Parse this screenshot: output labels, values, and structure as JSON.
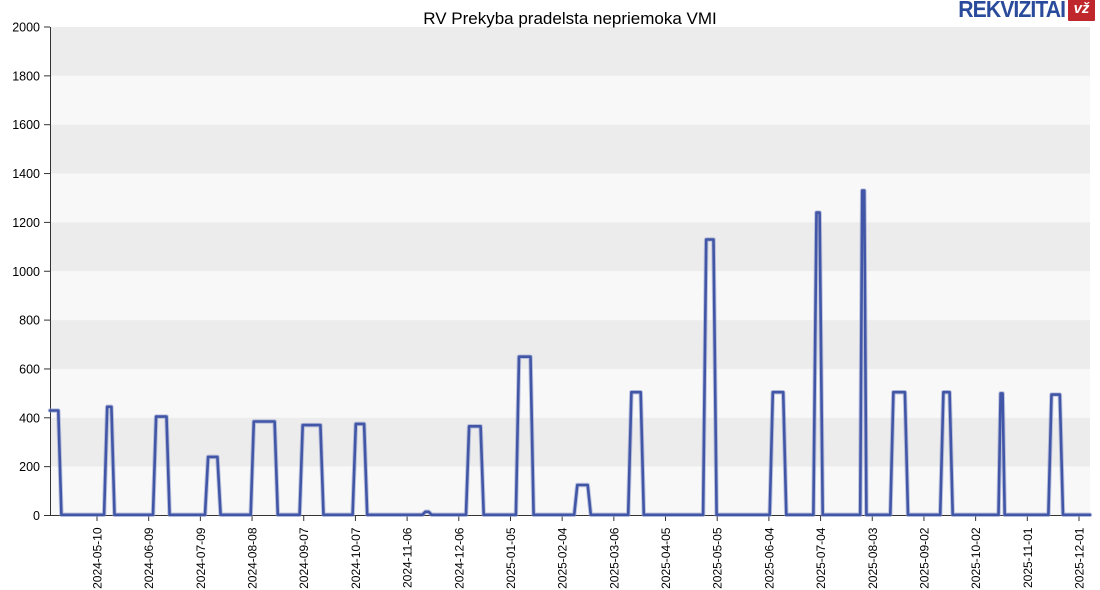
{
  "logo": {
    "text": "REKVIZITAI",
    "badge": "vž",
    "brand_blue": "#2a4b9b",
    "badge_red": "#c0272d"
  },
  "chart_data": {
    "type": "line",
    "title": "RV Prekyba pradelsta nepriemoka VMI",
    "xlabel": "",
    "ylabel": "",
    "ylim": [
      0,
      2000
    ],
    "ytick_step": 200,
    "grid": "horizontal-bands",
    "legend": "none",
    "series_color": "#4156a6",
    "grid_band_colors": [
      "#ececec",
      "#f8f8f8"
    ],
    "axis_color": "#333333",
    "x_tick_labels": [
      "2024-05-10",
      "2024-06-09",
      "2024-07-09",
      "2024-08-08",
      "2024-09-07",
      "2024-10-07",
      "2024-11-06",
      "2024-12-06",
      "2025-01-05",
      "2025-02-04",
      "2025-03-06",
      "2025-04-05",
      "2025-05-05",
      "2025-06-04",
      "2025-07-04",
      "2025-08-03",
      "2025-09-02",
      "2025-10-02",
      "2025-11-01",
      "2025-12-01"
    ],
    "baseline_value": 3,
    "spikes": [
      {
        "near": "series-start",
        "value": 430
      },
      {
        "near": "2024-05-10",
        "value": 445
      },
      {
        "near": "2024-06-09",
        "value": 405
      },
      {
        "near": "2024-07-09",
        "value": 240
      },
      {
        "near": "2024-08-08",
        "value": 385
      },
      {
        "near": "2024-09-07",
        "value": 370
      },
      {
        "near": "2024-10-07",
        "value": 375
      },
      {
        "near": "2024-11-06",
        "value": 15
      },
      {
        "near": "2024-12-06",
        "value": 365
      },
      {
        "near": "2025-01-05",
        "value": 650
      },
      {
        "near": "2025-02-04",
        "value": 125
      },
      {
        "near": "2025-03-06",
        "value": 505
      },
      {
        "near": "2025-05-05",
        "value": 1130
      },
      {
        "near": "2025-06-04",
        "value": 505
      },
      {
        "near": "2025-07-04",
        "value": 1240
      },
      {
        "near": "2025-08-03",
        "value": 1330
      },
      {
        "near": "2025-09-02",
        "value": 505
      },
      {
        "near": "2025-10-02",
        "value": 505
      },
      {
        "near": "2025-11-01",
        "value": 500
      },
      {
        "near": "2025-12-01",
        "value": 495
      }
    ],
    "points": [
      [
        0.0,
        430
      ],
      [
        0.008,
        430
      ],
      [
        0.011,
        3
      ],
      [
        0.052,
        3
      ],
      [
        0.055,
        445
      ],
      [
        0.059,
        445
      ],
      [
        0.062,
        3
      ],
      [
        0.099,
        3
      ],
      [
        0.102,
        405
      ],
      [
        0.112,
        405
      ],
      [
        0.115,
        3
      ],
      [
        0.149,
        3
      ],
      [
        0.152,
        240
      ],
      [
        0.161,
        240
      ],
      [
        0.164,
        3
      ],
      [
        0.193,
        3
      ],
      [
        0.196,
        385
      ],
      [
        0.216,
        385
      ],
      [
        0.219,
        3
      ],
      [
        0.24,
        3
      ],
      [
        0.243,
        370
      ],
      [
        0.26,
        370
      ],
      [
        0.263,
        3
      ],
      [
        0.291,
        3
      ],
      [
        0.294,
        375
      ],
      [
        0.302,
        375
      ],
      [
        0.305,
        3
      ],
      [
        0.358,
        3
      ],
      [
        0.361,
        15
      ],
      [
        0.364,
        15
      ],
      [
        0.367,
        3
      ],
      [
        0.4,
        3
      ],
      [
        0.403,
        365
      ],
      [
        0.414,
        365
      ],
      [
        0.417,
        3
      ],
      [
        0.448,
        3
      ],
      [
        0.451,
        650
      ],
      [
        0.462,
        650
      ],
      [
        0.465,
        3
      ],
      [
        0.504,
        3
      ],
      [
        0.507,
        125
      ],
      [
        0.517,
        125
      ],
      [
        0.52,
        3
      ],
      [
        0.556,
        3
      ],
      [
        0.559,
        505
      ],
      [
        0.568,
        505
      ],
      [
        0.571,
        3
      ],
      [
        0.628,
        3
      ],
      [
        0.631,
        1130
      ],
      [
        0.638,
        1130
      ],
      [
        0.641,
        3
      ],
      [
        0.692,
        3
      ],
      [
        0.695,
        505
      ],
      [
        0.705,
        505
      ],
      [
        0.708,
        3
      ],
      [
        0.734,
        3
      ],
      [
        0.737,
        1240
      ],
      [
        0.74,
        1240
      ],
      [
        0.743,
        3
      ],
      [
        0.779,
        3
      ],
      [
        0.781,
        1330
      ],
      [
        0.783,
        1330
      ],
      [
        0.785,
        3
      ],
      [
        0.808,
        3
      ],
      [
        0.811,
        505
      ],
      [
        0.822,
        505
      ],
      [
        0.825,
        3
      ],
      [
        0.856,
        3
      ],
      [
        0.859,
        505
      ],
      [
        0.865,
        505
      ],
      [
        0.868,
        3
      ],
      [
        0.912,
        3
      ],
      [
        0.914,
        500
      ],
      [
        0.916,
        500
      ],
      [
        0.918,
        3
      ],
      [
        0.96,
        3
      ],
      [
        0.963,
        495
      ],
      [
        0.971,
        495
      ],
      [
        0.974,
        3
      ],
      [
        1.0,
        3
      ]
    ]
  }
}
